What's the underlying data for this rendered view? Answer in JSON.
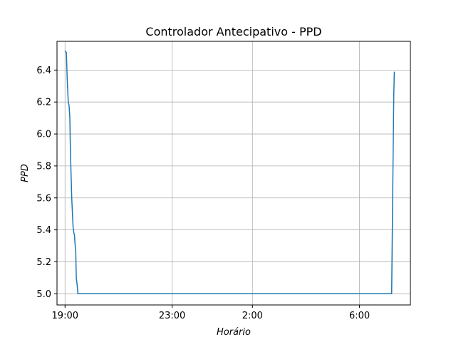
{
  "chart_data": {
    "type": "line",
    "title": "Controlador Antecipativo - PPD",
    "xlabel": "Horário",
    "ylabel": "PPD",
    "grid": true,
    "xlim": [
      18.7,
      31.9
    ],
    "ylim": [
      4.93,
      6.58
    ],
    "x_ticks": [
      {
        "value": 19,
        "label": "19:00"
      },
      {
        "value": 23,
        "label": "23:00"
      },
      {
        "value": 26,
        "label": "2:00"
      },
      {
        "value": 30,
        "label": "6:00"
      }
    ],
    "y_ticks": [
      {
        "value": 5.0,
        "label": "5.0"
      },
      {
        "value": 5.2,
        "label": "5.2"
      },
      {
        "value": 5.4,
        "label": "5.4"
      },
      {
        "value": 5.6,
        "label": "5.6"
      },
      {
        "value": 5.8,
        "label": "5.8"
      },
      {
        "value": 6.0,
        "label": "6.0"
      },
      {
        "value": 6.2,
        "label": "6.2"
      },
      {
        "value": 6.4,
        "label": "6.4"
      }
    ],
    "series": [
      {
        "color": "#1f77b4",
        "x": [
          19.0,
          19.05,
          19.08,
          19.12,
          19.15,
          19.18,
          19.2,
          19.25,
          19.3,
          19.33,
          19.35,
          19.38,
          19.4,
          19.42,
          19.45,
          19.48,
          19.5,
          20.0,
          25.0,
          30.0,
          31.2,
          31.25,
          31.28,
          31.3
        ],
        "y": [
          6.52,
          6.51,
          6.35,
          6.2,
          6.18,
          6.1,
          5.9,
          5.6,
          5.42,
          5.38,
          5.37,
          5.3,
          5.27,
          5.1,
          5.06,
          5.0,
          5.0,
          5.0,
          5.0,
          5.0,
          5.0,
          5.8,
          6.25,
          6.39
        ]
      }
    ]
  }
}
